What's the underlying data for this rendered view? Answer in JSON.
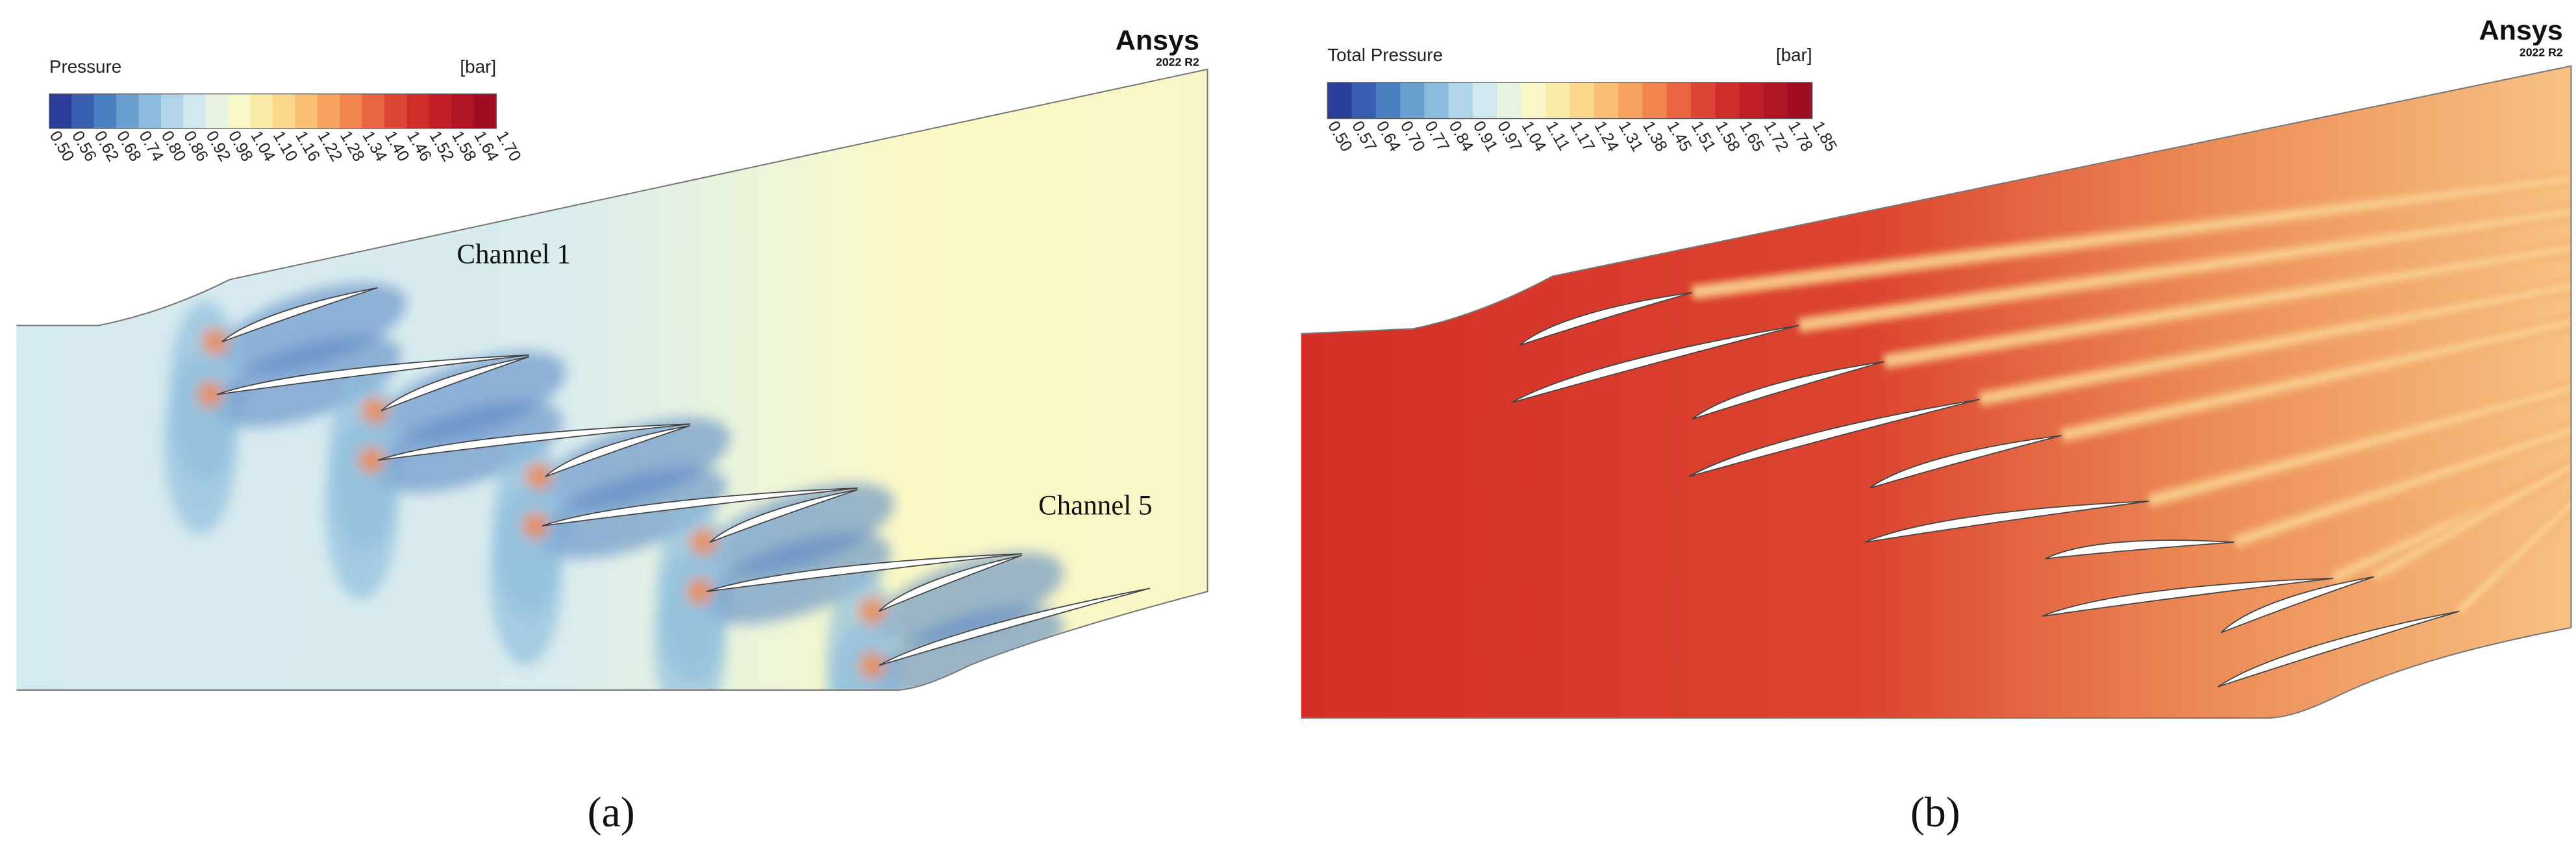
{
  "panels": [
    {
      "caption": "(a)",
      "logo": "Ansys",
      "logo_version": "2022 R2",
      "colorbar": {
        "title": "Pressure",
        "unit": "[bar]",
        "labels": [
          "0.50",
          "0.56",
          "0.62",
          "0.68",
          "0.74",
          "0.80",
          "0.86",
          "0.92",
          "0.98",
          "1.04",
          "1.10",
          "1.16",
          "1.22",
          "1.28",
          "1.34",
          "1.40",
          "1.46",
          "1.52",
          "1.58",
          "1.64",
          "1.70"
        ]
      },
      "annotations": [
        "Channel 1",
        "Channel 5"
      ]
    },
    {
      "caption": "(b)",
      "logo": "Ansys",
      "logo_version": "2022 R2",
      "colorbar": {
        "title": "Total Pressure",
        "unit": "[bar]",
        "labels": [
          "0.50",
          "0.57",
          "0.64",
          "0.70",
          "0.77",
          "0.84",
          "0.91",
          "0.97",
          "1.04",
          "1.11",
          "1.17",
          "1.24",
          "1.31",
          "1.38",
          "1.45",
          "1.51",
          "1.58",
          "1.65",
          "1.72",
          "1.78",
          "1.85"
        ]
      }
    }
  ]
}
